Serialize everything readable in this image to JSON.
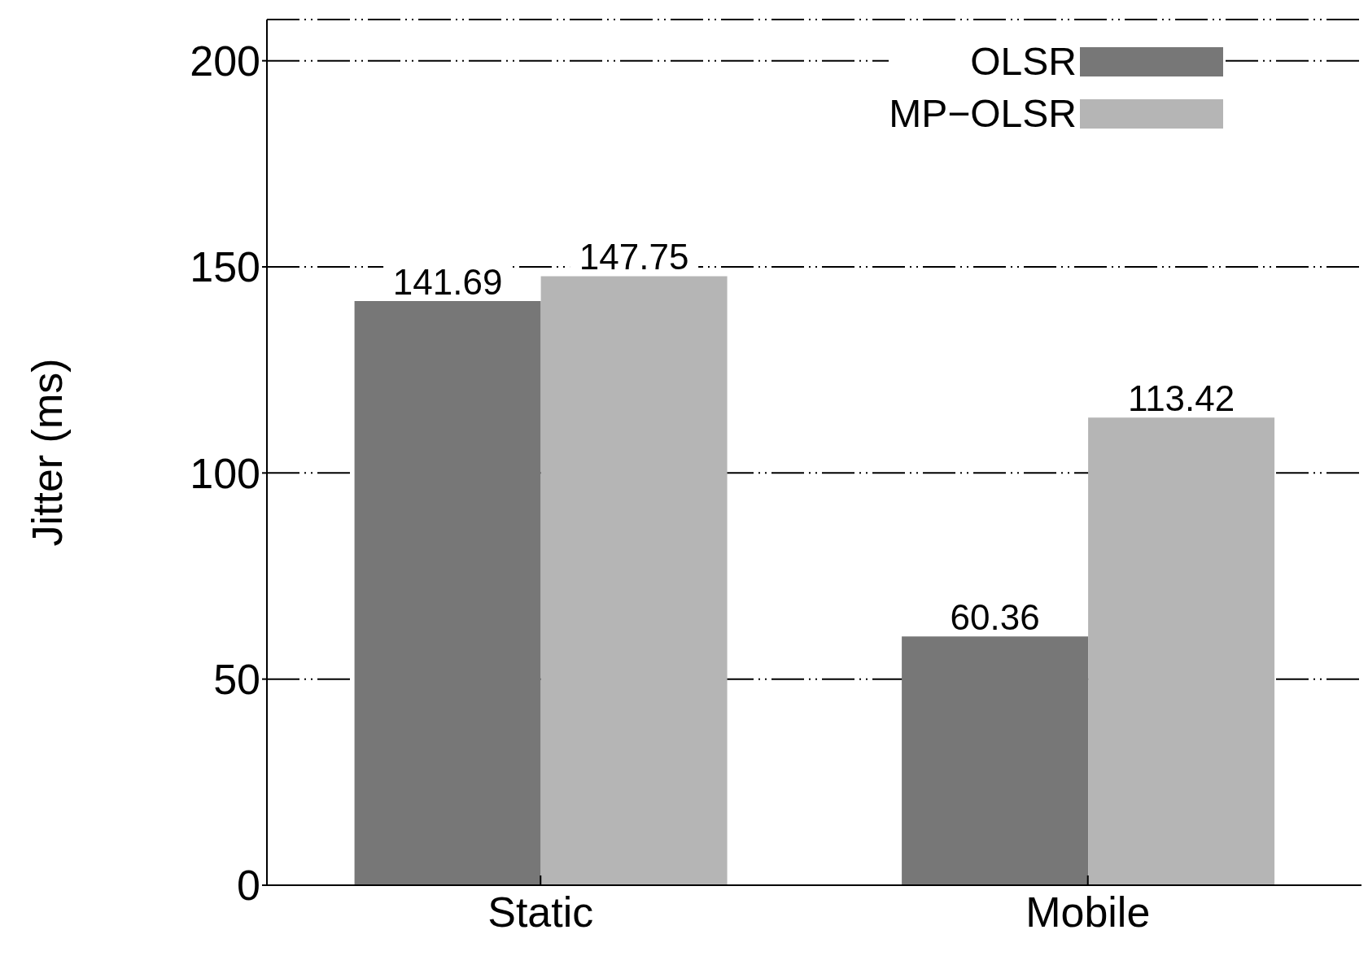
{
  "chart_data": {
    "type": "bar",
    "ylabel": "Jitter (ms)",
    "categories": [
      "Static",
      "Mobile"
    ],
    "series": [
      {
        "name": "OLSR",
        "color": "#777777",
        "values": [
          141.69,
          60.36
        ]
      },
      {
        "name": "MP−OLSR",
        "color": "#b5b5b5",
        "values": [
          147.75,
          113.42
        ]
      }
    ],
    "ylim": [
      0,
      210
    ],
    "yticks": [
      0,
      50,
      100,
      150,
      200
    ],
    "grid": "y",
    "legend": "top right",
    "data_labels": true
  }
}
